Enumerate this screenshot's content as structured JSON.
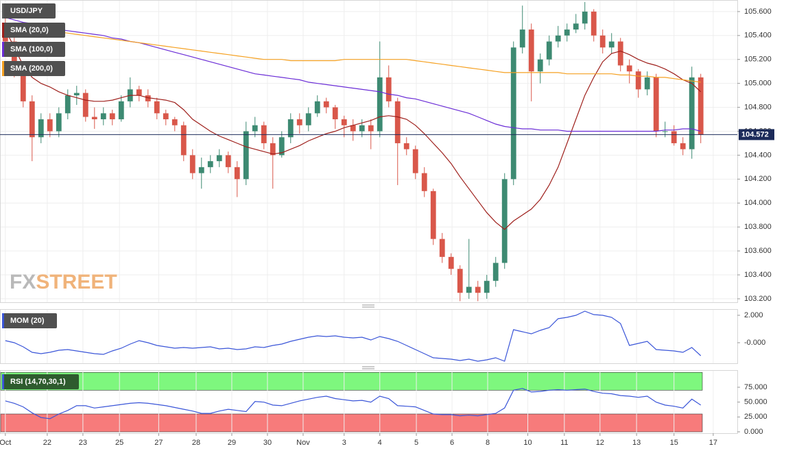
{
  "chart_data": [
    {
      "type": "candlestick",
      "title": "USD/JPY",
      "xlim": [
        -0.6,
        82.1
      ],
      "xticks": [
        {
          "value": 0,
          "label": "Oct"
        },
        {
          "value": 4.7,
          "label": "22"
        },
        {
          "value": 8.7,
          "label": "23"
        },
        {
          "value": 12.8,
          "label": "25"
        },
        {
          "value": 17.2,
          "label": "27"
        },
        {
          "value": 21.4,
          "label": "28"
        },
        {
          "value": 25.4,
          "label": "29"
        },
        {
          "value": 29.4,
          "label": "30"
        },
        {
          "value": 33.4,
          "label": "Nov"
        },
        {
          "value": 38,
          "label": "3"
        },
        {
          "value": 42,
          "label": "4"
        },
        {
          "value": 46.1,
          "label": "5"
        },
        {
          "value": 50.1,
          "label": "6"
        },
        {
          "value": 54.1,
          "label": "8"
        },
        {
          "value": 58.6,
          "label": "10"
        },
        {
          "value": 62.7,
          "label": "11"
        },
        {
          "value": 66.7,
          "label": "12"
        },
        {
          "value": 70.8,
          "label": "13"
        },
        {
          "value": 75,
          "label": "15"
        },
        {
          "value": 79.4,
          "label": "17"
        }
      ],
      "ylim": [
        103.171,
        105.691
      ],
      "yticks": [
        {
          "value": 103.2,
          "label": "103.200"
        },
        {
          "value": 103.4,
          "label": "103.400"
        },
        {
          "value": 103.6,
          "label": "103.600"
        },
        {
          "value": 103.8,
          "label": "103.800"
        },
        {
          "value": 104.0,
          "label": "104.000"
        },
        {
          "value": 104.2,
          "label": "104.200"
        },
        {
          "value": 104.4,
          "label": "104.400"
        },
        {
          "value": 104.6,
          "label": "104.600"
        },
        {
          "value": 104.8,
          "label": "104.800"
        },
        {
          "value": 105.0,
          "label": "105.000"
        },
        {
          "value": 105.2,
          "label": "105.200"
        },
        {
          "value": 105.4,
          "label": "105.400"
        },
        {
          "value": 105.6,
          "label": "105.600"
        }
      ],
      "grid": true,
      "up_color": "#3d8a72",
      "down_color": "#d9574a",
      "last_price": 104.572,
      "watermark": [
        "FX",
        "STREET"
      ],
      "open": [
        105.45,
        105.35,
        105.1,
        104.85,
        104.55,
        104.7,
        104.6,
        104.75,
        104.9,
        104.92,
        104.72,
        104.7,
        104.75,
        104.7,
        104.85,
        104.95,
        104.9,
        104.85,
        104.75,
        104.7,
        104.65,
        104.4,
        104.25,
        104.3,
        104.35,
        104.4,
        104.3,
        104.2,
        104.6,
        104.65,
        104.5,
        104.4,
        104.55,
        104.7,
        104.65,
        104.75,
        104.85,
        104.8,
        104.7,
        104.65,
        104.6,
        104.65,
        104.6,
        105.05,
        104.85,
        104.5,
        104.45,
        104.25,
        104.1,
        103.7,
        103.55,
        103.45,
        103.25,
        103.3,
        103.25,
        103.35,
        103.5,
        104.2,
        105.3,
        105.45,
        105.1,
        105.2,
        105.35,
        105.4,
        105.45,
        105.5,
        105.6,
        105.4,
        105.3,
        105.35,
        105.15,
        105.1,
        104.95,
        105.05,
        104.6,
        104.6,
        104.5,
        104.45,
        105.05
      ],
      "high": [
        105.55,
        105.4,
        105.15,
        104.9,
        104.75,
        104.75,
        104.8,
        104.95,
        104.98,
        104.95,
        104.8,
        104.8,
        104.78,
        104.9,
        105.05,
        104.98,
        104.95,
        104.88,
        104.78,
        104.72,
        104.68,
        104.45,
        104.38,
        104.4,
        104.45,
        104.43,
        104.35,
        104.68,
        104.72,
        104.68,
        104.55,
        104.6,
        104.75,
        104.75,
        104.8,
        104.9,
        104.88,
        104.82,
        104.73,
        104.7,
        104.7,
        104.7,
        105.35,
        105.15,
        104.88,
        104.55,
        104.48,
        104.3,
        104.12,
        103.75,
        103.58,
        103.48,
        103.7,
        103.35,
        103.4,
        103.55,
        104.25,
        105.35,
        105.65,
        105.5,
        105.25,
        105.4,
        105.48,
        105.5,
        105.58,
        105.68,
        105.62,
        105.45,
        105.42,
        105.38,
        105.2,
        105.12,
        105.1,
        105.08,
        104.68,
        104.65,
        104.55,
        105.14,
        105.08
      ],
      "low": [
        105.3,
        105.05,
        104.8,
        104.35,
        104.5,
        104.55,
        104.55,
        104.7,
        104.82,
        104.68,
        104.62,
        104.65,
        104.65,
        104.68,
        104.8,
        104.85,
        104.8,
        104.7,
        104.65,
        104.6,
        104.35,
        104.2,
        104.12,
        104.25,
        104.3,
        104.25,
        104.05,
        104.15,
        104.55,
        104.45,
        104.12,
        104.38,
        104.5,
        104.58,
        104.6,
        104.72,
        104.75,
        104.62,
        104.55,
        104.52,
        104.55,
        104.45,
        104.55,
        104.8,
        104.15,
        104.4,
        104.2,
        104.05,
        103.65,
        103.5,
        103.4,
        103.18,
        103.2,
        103.18,
        103.2,
        103.3,
        103.45,
        104.15,
        105.25,
        104.85,
        105.0,
        105.15,
        105.3,
        105.35,
        105.42,
        105.45,
        105.35,
        105.25,
        105.25,
        105.1,
        105.0,
        104.88,
        104.9,
        104.55,
        104.55,
        104.48,
        104.4,
        104.37,
        104.5
      ],
      "close": [
        105.35,
        105.1,
        104.85,
        104.55,
        104.7,
        104.6,
        104.75,
        104.9,
        104.92,
        104.72,
        104.7,
        104.75,
        104.7,
        104.85,
        104.95,
        104.9,
        104.85,
        104.75,
        104.7,
        104.65,
        104.4,
        104.25,
        104.3,
        104.35,
        104.4,
        104.3,
        104.2,
        104.6,
        104.65,
        104.5,
        104.4,
        104.55,
        104.7,
        104.65,
        104.75,
        104.85,
        104.8,
        104.7,
        104.65,
        104.6,
        104.65,
        104.6,
        105.05,
        104.85,
        104.5,
        104.45,
        104.25,
        104.1,
        103.7,
        103.55,
        103.45,
        103.25,
        103.3,
        103.25,
        103.35,
        103.5,
        104.2,
        105.3,
        105.45,
        105.1,
        105.2,
        105.35,
        105.4,
        105.45,
        105.5,
        105.6,
        105.4,
        105.3,
        105.35,
        105.15,
        105.1,
        104.95,
        105.05,
        104.6,
        104.6,
        104.5,
        104.45,
        105.05,
        104.57
      ],
      "series": [
        {
          "name": "SMA (20,0)",
          "color": "#9e1f1b",
          "values": [
            105.45,
            105.3,
            105.15,
            105.05,
            105.0,
            104.97,
            104.93,
            104.9,
            104.88,
            104.86,
            104.85,
            104.85,
            104.86,
            104.88,
            104.9,
            104.9,
            104.88,
            104.87,
            104.86,
            104.84,
            104.78,
            104.7,
            104.65,
            104.6,
            104.56,
            104.53,
            104.5,
            104.47,
            104.45,
            104.43,
            104.41,
            104.42,
            104.45,
            104.48,
            104.52,
            104.55,
            104.58,
            104.6,
            104.63,
            104.65,
            104.67,
            104.69,
            104.72,
            104.73,
            104.72,
            104.7,
            104.65,
            104.58,
            104.5,
            104.42,
            104.33,
            104.22,
            104.12,
            104.02,
            103.92,
            103.84,
            103.78,
            103.85,
            103.9,
            103.95,
            104.03,
            104.15,
            104.3,
            104.5,
            104.7,
            104.9,
            105.05,
            105.18,
            105.25,
            105.27,
            105.24,
            105.2,
            105.17,
            105.15,
            105.12,
            105.08,
            105.03,
            105.0,
            104.93
          ]
        },
        {
          "name": "SMA (100,0)",
          "color": "#6a2cd6",
          "values": [
            105.55,
            105.53,
            105.51,
            105.5,
            105.48,
            105.47,
            105.45,
            105.44,
            105.43,
            105.42,
            105.41,
            105.4,
            105.38,
            105.37,
            105.35,
            105.34,
            105.32,
            105.3,
            105.28,
            105.26,
            105.24,
            105.22,
            105.2,
            105.18,
            105.16,
            105.14,
            105.12,
            105.1,
            105.08,
            105.07,
            105.06,
            105.05,
            105.04,
            105.03,
            105.01,
            105.0,
            104.99,
            104.98,
            104.97,
            104.96,
            104.95,
            104.94,
            104.93,
            104.91,
            104.9,
            104.88,
            104.87,
            104.85,
            104.83,
            104.81,
            104.79,
            104.77,
            104.75,
            104.72,
            104.69,
            104.66,
            104.64,
            104.63,
            104.62,
            104.62,
            104.61,
            104.61,
            104.61,
            104.6,
            104.6,
            104.6,
            104.6,
            104.6,
            104.6,
            104.6,
            104.6,
            104.6,
            104.6,
            104.6,
            104.61,
            104.61,
            104.62,
            104.62,
            104.6
          ]
        },
        {
          "name": "SMA (200,0)",
          "color": "#f5a020",
          "values": [
            105.5,
            105.48,
            105.47,
            105.46,
            105.45,
            105.44,
            105.43,
            105.42,
            105.41,
            105.4,
            105.39,
            105.38,
            105.37,
            105.36,
            105.35,
            105.34,
            105.33,
            105.32,
            105.31,
            105.3,
            105.29,
            105.28,
            105.27,
            105.26,
            105.25,
            105.24,
            105.23,
            105.22,
            105.21,
            105.2,
            105.2,
            105.2,
            105.19,
            105.19,
            105.19,
            105.19,
            105.19,
            105.19,
            105.2,
            105.2,
            105.2,
            105.2,
            105.2,
            105.2,
            105.2,
            105.2,
            105.19,
            105.18,
            105.17,
            105.16,
            105.15,
            105.14,
            105.13,
            105.12,
            105.11,
            105.1,
            105.09,
            105.09,
            105.09,
            105.09,
            105.09,
            105.09,
            105.09,
            105.08,
            105.08,
            105.08,
            105.08,
            105.08,
            105.08,
            105.07,
            105.07,
            105.06,
            105.06,
            105.05,
            105.05,
            105.04,
            105.03,
            105.02,
            105.01
          ]
        }
      ]
    },
    {
      "type": "line",
      "title": "MOM (20)",
      "ylim": [
        -1.5,
        2.4
      ],
      "yticks": [
        {
          "value": 0,
          "label": "-0.000"
        },
        {
          "value": 2,
          "label": "2.000"
        }
      ],
      "series": [
        {
          "color": "#3a55d8",
          "values": [
            0.15,
            0,
            -0.3,
            -0.7,
            -0.8,
            -0.7,
            -0.55,
            -0.5,
            -0.6,
            -0.7,
            -0.8,
            -0.85,
            -0.6,
            -0.4,
            -0.1,
            0.15,
            0,
            -0.2,
            -0.3,
            -0.4,
            -0.35,
            -0.4,
            -0.35,
            -0.3,
            -0.45,
            -0.4,
            -0.5,
            -0.45,
            -0.3,
            -0.35,
            -0.2,
            -0.1,
            0.1,
            0.25,
            0.4,
            0.5,
            0.45,
            0.5,
            0.4,
            0.35,
            0.4,
            0.2,
            0.45,
            0.3,
            0.1,
            -0.2,
            -0.5,
            -0.8,
            -1.1,
            -1.15,
            -1.2,
            -1.3,
            -1.2,
            -1.35,
            -1.25,
            -1.1,
            -1.35,
            0.95,
            0.8,
            0.65,
            0.9,
            1.1,
            1.75,
            1.85,
            2.0,
            2.3,
            2.05,
            2.0,
            1.85,
            1.4,
            -0.2,
            -0.05,
            0.1,
            -0.5,
            -0.55,
            -0.6,
            -0.7,
            -0.35,
            -0.95
          ]
        }
      ]
    },
    {
      "type": "line",
      "title": "RSI (14,70,30,1)",
      "ylim": [
        -2.3,
        102.7
      ],
      "yticks": [
        {
          "value": 0,
          "label": "0.000"
        },
        {
          "value": 25,
          "label": "25.000"
        },
        {
          "value": 50,
          "label": "50.000"
        },
        {
          "value": 75,
          "label": "75.000"
        }
      ],
      "bands": [
        {
          "from": 70,
          "to": 100,
          "color": "#7ef77e"
        },
        {
          "from": 0,
          "to": 30,
          "color": "#f77b7b"
        }
      ],
      "series": [
        {
          "color": "#3a55d8",
          "values": [
            52,
            48,
            42,
            32,
            24,
            22,
            30,
            36,
            44,
            44,
            40,
            42,
            44,
            46,
            48,
            49,
            48,
            46,
            44,
            41,
            38,
            35,
            31,
            31,
            35,
            38,
            36,
            34,
            51,
            50,
            45,
            44,
            48,
            52,
            55,
            58,
            60,
            56,
            54,
            52,
            53,
            50,
            60,
            56,
            44,
            43,
            42,
            36,
            30,
            29,
            29,
            27,
            28,
            27,
            29,
            31,
            40,
            70,
            73,
            67,
            68,
            70,
            71,
            70,
            71,
            72,
            68,
            65,
            64,
            61,
            60,
            58,
            60,
            50,
            45,
            43,
            40,
            55,
            45
          ]
        }
      ]
    }
  ]
}
